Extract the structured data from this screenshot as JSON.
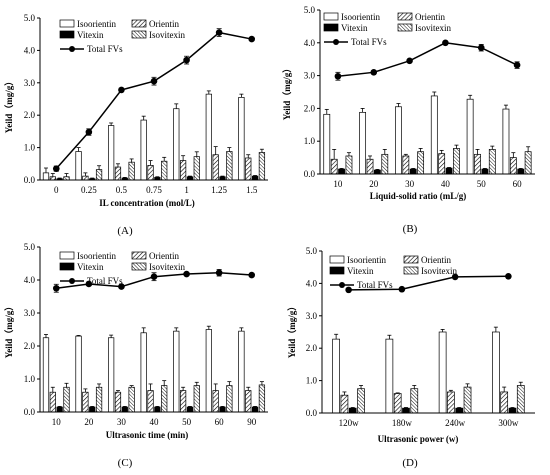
{
  "colors": {
    "axis": "#000000",
    "bar_white": "#ffffff",
    "bar_black": "#000000",
    "hatch": "#000000"
  },
  "legend_labels": [
    "Isoorientin",
    "Orientin",
    "Vitexin",
    "Isovitexin",
    "Total FVs"
  ],
  "chart_data": [
    {
      "panel_label": "(A)",
      "type": "bar",
      "xlabel": "IL concentration (mol/L)",
      "ylabel": "Yeild（mg/g）",
      "ylim": [
        0,
        5.0
      ],
      "yticks": [
        "0.0",
        "1.0",
        "2.0",
        "3.0",
        "4.0",
        "5.0"
      ],
      "categories": [
        "0",
        "0.25",
        "0.5",
        "0.75",
        "1",
        "1.25",
        "1.5"
      ],
      "legend_placement": "top-left",
      "series": [
        {
          "name": "Isoorientin",
          "pattern": "white",
          "values": [
            0.22,
            0.88,
            1.68,
            1.85,
            2.2,
            2.65,
            2.55
          ],
          "errors": [
            0.15,
            0.12,
            0.08,
            0.12,
            0.15,
            0.1,
            0.1
          ]
        },
        {
          "name": "Orientin",
          "pattern": "diag",
          "values": [
            0.1,
            0.12,
            0.4,
            0.45,
            0.6,
            0.78,
            0.68
          ],
          "errors": [
            0.1,
            0.1,
            0.1,
            0.15,
            0.15,
            0.25,
            0.1
          ]
        },
        {
          "name": "Vitexin",
          "pattern": "black",
          "values": [
            0.04,
            0.04,
            0.06,
            0.08,
            0.1,
            0.1,
            0.12
          ],
          "errors": [
            0.02,
            0.02,
            0.02,
            0.02,
            0.02,
            0.02,
            0.02
          ]
        },
        {
          "name": "Isovitexin",
          "pattern": "dense",
          "values": [
            0.1,
            0.32,
            0.55,
            0.58,
            0.72,
            0.88,
            0.85
          ],
          "errors": [
            0.1,
            0.12,
            0.1,
            0.12,
            0.15,
            0.12,
            0.1
          ]
        }
      ],
      "line": {
        "name": "Total FVs",
        "values": [
          0.35,
          1.48,
          2.78,
          3.05,
          3.7,
          4.55,
          4.35
        ],
        "errors": [
          0.08,
          0.1,
          0.05,
          0.12,
          0.12,
          0.12,
          0.05
        ]
      }
    },
    {
      "panel_label": "(B)",
      "type": "bar",
      "xlabel": "Liquid-solid ratio (mL/g)",
      "ylabel": "Yeild（mg/g）",
      "ylim": [
        0,
        5.0
      ],
      "yticks": [
        "0.0",
        "1.0",
        "2.0",
        "3.0",
        "4.0",
        "5.0"
      ],
      "categories": [
        "10",
        "20",
        "30",
        "40",
        "50",
        "60"
      ],
      "legend_placement": "top-left",
      "series": [
        {
          "name": "Isoorientin",
          "pattern": "white",
          "values": [
            1.82,
            1.88,
            2.05,
            2.38,
            2.28,
            1.98
          ],
          "errors": [
            0.15,
            0.12,
            0.1,
            0.12,
            0.12,
            0.12
          ]
        },
        {
          "name": "Orientin",
          "pattern": "diag",
          "values": [
            0.45,
            0.45,
            0.55,
            0.62,
            0.6,
            0.5
          ],
          "errors": [
            0.3,
            0.1,
            0.05,
            0.1,
            0.15,
            0.15
          ]
        },
        {
          "name": "Vitexin",
          "pattern": "black",
          "values": [
            0.15,
            0.12,
            0.15,
            0.18,
            0.15,
            0.15
          ],
          "errors": [
            0.02,
            0.02,
            0.02,
            0.02,
            0.02,
            0.02
          ]
        },
        {
          "name": "Isovitexin",
          "pattern": "dense",
          "values": [
            0.55,
            0.6,
            0.68,
            0.78,
            0.75,
            0.68
          ],
          "errors": [
            0.1,
            0.15,
            0.1,
            0.1,
            0.1,
            0.15
          ]
        }
      ],
      "line": {
        "name": "Total FVs",
        "values": [
          2.98,
          3.1,
          3.45,
          4.0,
          3.85,
          3.32
        ],
        "errors": [
          0.12,
          0.05,
          0.05,
          0.05,
          0.1,
          0.1
        ]
      }
    },
    {
      "panel_label": "(C)",
      "type": "bar",
      "xlabel": "Ultrasonic time (min)",
      "ylabel": "Yeild（mg/g）",
      "ylim": [
        0,
        5.0
      ],
      "yticks": [
        "0.0",
        "1.0",
        "2.0",
        "3.0",
        "4.0",
        "5.0"
      ],
      "categories": [
        "10",
        "20",
        "30",
        "40",
        "50",
        "60",
        "90"
      ],
      "legend_placement": "top-left",
      "series": [
        {
          "name": "Isoorientin",
          "pattern": "white",
          "values": [
            2.25,
            2.3,
            2.25,
            2.4,
            2.45,
            2.5,
            2.45
          ],
          "errors": [
            0.1,
            0.02,
            0.08,
            0.15,
            0.1,
            0.1,
            0.1
          ]
        },
        {
          "name": "Orientin",
          "pattern": "diag",
          "values": [
            0.6,
            0.6,
            0.6,
            0.65,
            0.65,
            0.65,
            0.65
          ],
          "errors": [
            0.15,
            0.1,
            0.05,
            0.2,
            0.1,
            0.2,
            0.1
          ]
        },
        {
          "name": "Vitexin",
          "pattern": "black",
          "values": [
            0.15,
            0.15,
            0.15,
            0.15,
            0.15,
            0.15,
            0.15
          ],
          "errors": [
            0.02,
            0.02,
            0.02,
            0.02,
            0.02,
            0.02,
            0.02
          ]
        },
        {
          "name": "Isovitexin",
          "pattern": "dense",
          "values": [
            0.75,
            0.75,
            0.75,
            0.8,
            0.8,
            0.8,
            0.82
          ],
          "errors": [
            0.12,
            0.1,
            0.05,
            0.15,
            0.1,
            0.12,
            0.1
          ]
        }
      ],
      "line": {
        "name": "Total FVs",
        "values": [
          3.75,
          3.88,
          3.8,
          4.1,
          4.18,
          4.22,
          4.15
        ],
        "errors": [
          0.12,
          0.02,
          0.02,
          0.12,
          0.05,
          0.1,
          0.05
        ]
      }
    },
    {
      "panel_label": "(D)",
      "type": "bar",
      "xlabel": "Ultrasonic power (w)",
      "ylabel": "Yeild（mg/g）",
      "ylim": [
        0,
        5.0
      ],
      "yticks": [
        "0.0",
        "1.0",
        "2.0",
        "3.0",
        "4.0",
        "5.0"
      ],
      "categories": [
        "120w",
        "180w",
        "240w",
        "300w"
      ],
      "legend_placement": "top-left",
      "series": [
        {
          "name": "Isoorientin",
          "pattern": "white",
          "values": [
            2.28,
            2.28,
            2.5,
            2.5
          ],
          "errors": [
            0.15,
            0.12,
            0.08,
            0.15
          ]
        },
        {
          "name": "Orientin",
          "pattern": "diag",
          "values": [
            0.55,
            0.6,
            0.65,
            0.65
          ],
          "errors": [
            0.1,
            0.02,
            0.05,
            0.15
          ]
        },
        {
          "name": "Vitexin",
          "pattern": "black",
          "values": [
            0.15,
            0.15,
            0.15,
            0.15
          ],
          "errors": [
            0.02,
            0.02,
            0.02,
            0.02
          ]
        },
        {
          "name": "Isovitexin",
          "pattern": "dense",
          "values": [
            0.75,
            0.75,
            0.8,
            0.85
          ],
          "errors": [
            0.1,
            0.1,
            0.1,
            0.1
          ]
        }
      ],
      "line": {
        "name": "Total FVs",
        "values": [
          3.8,
          3.82,
          4.2,
          4.22
        ],
        "errors": [
          0.02,
          0.02,
          0.02,
          0.02
        ]
      }
    }
  ]
}
